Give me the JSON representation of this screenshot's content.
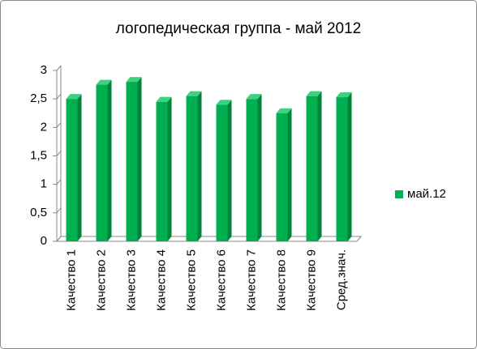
{
  "chart_data": {
    "type": "bar",
    "title": "логопедическая группа - май 2012",
    "categories": [
      "Качество 1",
      "Качество 2",
      "Качество 3",
      "Качество 4",
      "Качество 5",
      "Качество 6",
      "Качество 7",
      "Качество 8",
      "Качество 9",
      "Сред.знач."
    ],
    "series": [
      {
        "name": "май.12",
        "color": "#00b050",
        "values": [
          2.5,
          2.75,
          2.8,
          2.45,
          2.55,
          2.4,
          2.5,
          2.25,
          2.55,
          2.53
        ]
      }
    ],
    "ylim": [
      0,
      3
    ],
    "yticks": [
      0,
      {
        "value": 0.5,
        "label": "0,5"
      },
      1,
      {
        "value": 1.5,
        "label": "1,5"
      },
      2,
      {
        "value": 2.5,
        "label": "2,5"
      },
      3
    ],
    "legend": "right"
  }
}
